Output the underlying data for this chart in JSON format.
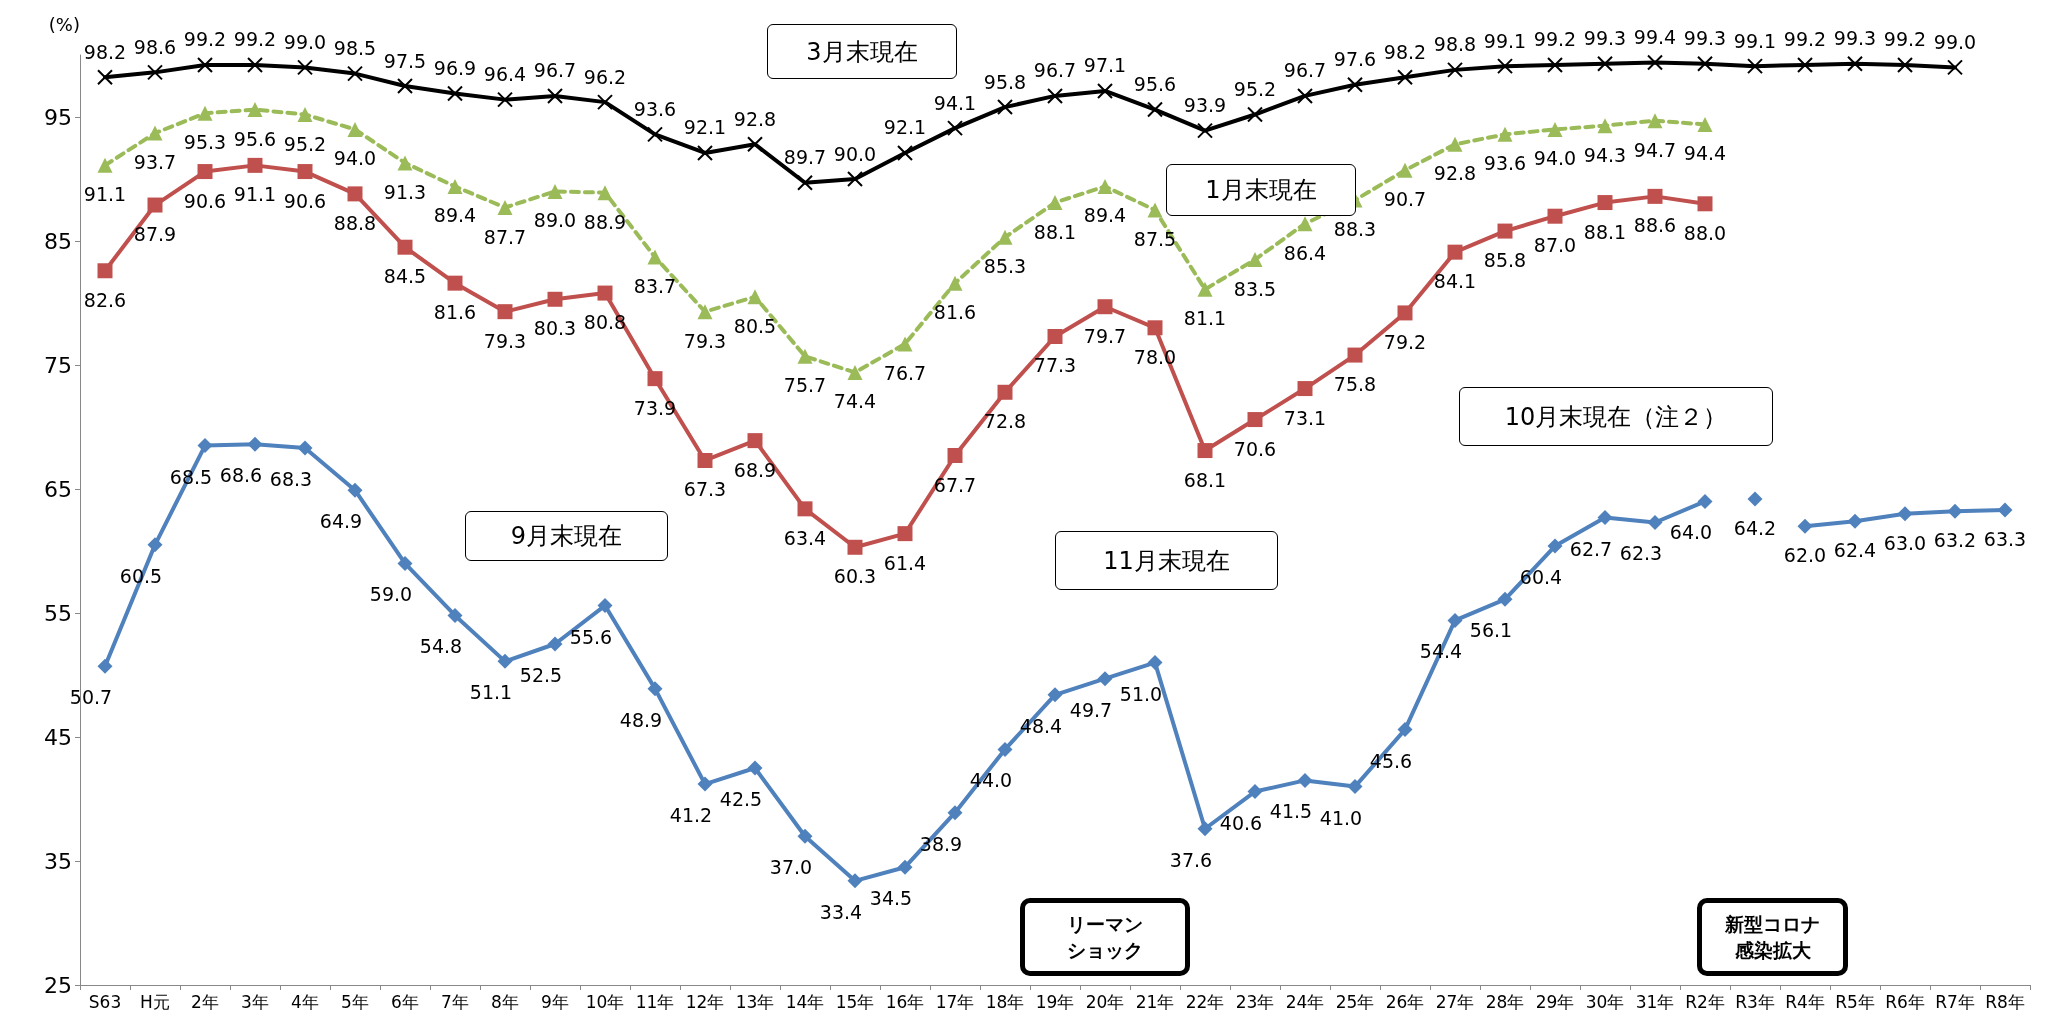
{
  "chart_data": {
    "type": "line",
    "ylabel": "(%)",
    "categories": [
      "S63",
      "H元",
      "2年",
      "3年",
      "4年",
      "5年",
      "6年",
      "7年",
      "8年",
      "9年",
      "10年",
      "11年",
      "12年",
      "13年",
      "14年",
      "15年",
      "16年",
      "17年",
      "18年",
      "19年",
      "20年",
      "21年",
      "22年",
      "23年",
      "24年",
      "25年",
      "26年",
      "27年",
      "28年",
      "29年",
      "30年",
      "31年",
      "R2年",
      "R3年",
      "R4年",
      "R5年",
      "R6年",
      "R7年",
      "R8年"
    ],
    "series": [
      {
        "color": "#000000",
        "marker": "cross",
        "line_style": "solid",
        "values": [
          98.2,
          98.6,
          99.2,
          99.2,
          99.0,
          98.5,
          97.5,
          96.9,
          96.4,
          96.7,
          96.2,
          93.6,
          92.1,
          92.8,
          89.7,
          90.0,
          92.1,
          94.1,
          95.8,
          96.7,
          97.1,
          95.6,
          93.9,
          95.2,
          96.7,
          97.6,
          98.2,
          98.8,
          99.1,
          99.2,
          99.3,
          99.4,
          99.3,
          99.1,
          99.2,
          99.3,
          99.2,
          99.0,
          null
        ],
        "value_labels": [
          "98.2",
          "98.6",
          "99.2",
          "99.2",
          "99.0",
          "98.5",
          "97.5",
          "96.9",
          "96.4",
          "96.7",
          "96.2",
          "93.6",
          "92.1",
          "92.8",
          "89.7",
          "90.0",
          "92.1",
          "94.1",
          "95.8",
          "96.7",
          "97.1",
          "95.6",
          "93.9",
          "95.2",
          "96.7",
          "97.6",
          "98.2",
          "98.8",
          "99.1",
          "99.2",
          "99.3",
          "99.4",
          "99.3",
          "99.1",
          "99.2",
          "99.3",
          "99.2",
          "99.0",
          null
        ]
      },
      {
        "color": "#9bbb59",
        "marker": "triangle",
        "line_style": "dashed",
        "values": [
          91.1,
          93.7,
          95.3,
          95.6,
          95.2,
          94.0,
          91.3,
          89.4,
          87.7,
          89.0,
          88.9,
          83.7,
          79.3,
          80.5,
          75.7,
          74.4,
          76.7,
          81.6,
          85.3,
          88.1,
          89.4,
          87.5,
          81.1,
          83.5,
          86.4,
          88.3,
          90.7,
          92.8,
          93.6,
          94.0,
          94.3,
          94.7,
          94.4,
          null,
          null,
          null,
          null,
          null,
          null
        ],
        "value_labels": [
          "91.1",
          "93.7",
          "95.3",
          "95.6",
          "95.2",
          "94.0",
          "91.3",
          "89.4",
          "87.7",
          "89.0",
          "88.9",
          "83.7",
          "79.3",
          "80.5",
          "75.7",
          "74.4",
          "76.7",
          "81.6",
          "85.3",
          "88.1",
          "89.4",
          "87.5",
          "81.1",
          "83.5",
          "86.4",
          "88.3",
          "90.7",
          "92.8",
          "93.6",
          "94.0",
          "94.3",
          "94.7",
          "94.4",
          null,
          null,
          null,
          null,
          null,
          null
        ]
      },
      {
        "color": "#c0504d",
        "marker": "square",
        "line_style": "solid",
        "values": [
          82.6,
          87.9,
          90.6,
          91.1,
          90.6,
          88.8,
          84.5,
          81.6,
          79.3,
          80.3,
          80.8,
          73.9,
          67.3,
          68.9,
          63.4,
          60.3,
          61.4,
          67.7,
          72.8,
          77.3,
          79.7,
          78.0,
          68.1,
          70.6,
          73.1,
          75.8,
          79.2,
          84.1,
          85.8,
          87.0,
          88.1,
          88.6,
          88.0,
          null,
          null,
          null,
          null,
          null,
          null
        ],
        "value_labels": [
          "82.6",
          "87.9",
          "90.6",
          "91.1",
          "90.6",
          "88.8",
          "84.5",
          "81.6",
          "79.3",
          "80.3",
          "80.8",
          "73.9",
          "67.3",
          "68.9",
          "63.4",
          "60.3",
          "61.4",
          "67.7",
          "72.8",
          "77.3",
          "79.7",
          "78.0",
          "68.1",
          "70.6",
          "73.1",
          "75.8",
          "79.2",
          "84.1",
          "85.8",
          "87.0",
          "88.1",
          "88.6",
          "88.0",
          null,
          null,
          null,
          null,
          null,
          null
        ]
      },
      {
        "color": "#4f81bd",
        "marker": "diamond",
        "line_style": "solid",
        "values": [
          50.7,
          60.5,
          68.5,
          68.6,
          68.3,
          64.9,
          59.0,
          54.8,
          51.1,
          52.5,
          55.6,
          48.9,
          41.2,
          42.5,
          37.0,
          33.4,
          34.5,
          38.9,
          44.0,
          48.4,
          49.7,
          51.0,
          37.6,
          40.6,
          41.5,
          41.0,
          45.6,
          54.4,
          56.1,
          60.4,
          62.7,
          62.3,
          64.0,
          null,
          null,
          null,
          null,
          null,
          null
        ],
        "value_labels": [
          "50.7",
          "60.5",
          "68.5",
          "68.6",
          "68.3",
          "64.9",
          "59.0",
          "54.8",
          "51.1",
          "52.5",
          "55.6",
          "48.9",
          "41.2",
          "42.5",
          "37.0",
          "33.4",
          "34.5",
          "38.9",
          "44.0",
          "48.4",
          "49.7",
          "51.0",
          "37.6",
          "40.6",
          "41.5",
          "41.0",
          "45.6",
          "54.4",
          "56.1",
          "60.4",
          "62.7",
          "62.3",
          "64.0",
          null,
          null,
          null,
          null,
          null,
          null
        ]
      },
      {
        "color": "#4f81bd",
        "marker": "diamond",
        "line_style": "solid",
        "values": [
          null,
          null,
          null,
          null,
          null,
          null,
          null,
          null,
          null,
          null,
          null,
          null,
          null,
          null,
          null,
          null,
          null,
          null,
          null,
          null,
          null,
          null,
          null,
          null,
          null,
          null,
          null,
          null,
          null,
          null,
          null,
          null,
          null,
          64.2,
          null,
          null,
          null,
          null,
          null
        ],
        "value_labels": [
          null,
          null,
          null,
          null,
          null,
          null,
          null,
          null,
          null,
          null,
          null,
          null,
          null,
          null,
          null,
          null,
          null,
          null,
          null,
          null,
          null,
          null,
          null,
          null,
          null,
          null,
          null,
          null,
          null,
          null,
          null,
          null,
          null,
          "64.2",
          null,
          null,
          null,
          null,
          null
        ]
      },
      {
        "color": "#4f81bd",
        "marker": "diamond",
        "line_style": "solid",
        "values": [
          null,
          null,
          null,
          null,
          null,
          null,
          null,
          null,
          null,
          null,
          null,
          null,
          null,
          null,
          null,
          null,
          null,
          null,
          null,
          null,
          null,
          null,
          null,
          null,
          null,
          null,
          null,
          null,
          null,
          null,
          null,
          null,
          null,
          null,
          62.0,
          62.4,
          63.0,
          63.2,
          63.3
        ],
        "value_labels": [
          null,
          null,
          null,
          null,
          null,
          null,
          null,
          null,
          null,
          null,
          null,
          null,
          null,
          null,
          null,
          null,
          null,
          null,
          null,
          null,
          null,
          null,
          null,
          null,
          null,
          null,
          null,
          null,
          null,
          null,
          null,
          null,
          null,
          null,
          "62.0",
          "62.4",
          "63.0",
          "63.2",
          "63.3"
        ]
      }
    ],
    "ylim": [
      25,
      100
    ],
    "yticks": [
      25,
      35,
      45,
      55,
      65,
      75,
      85,
      95
    ],
    "grid": false,
    "annotations": [
      "3月末現在",
      "1月末現在",
      "11月末現在",
      "9月末現在",
      "10月末現在（注２）",
      "リーマンショック",
      "新型コロナ感染拡大"
    ]
  }
}
